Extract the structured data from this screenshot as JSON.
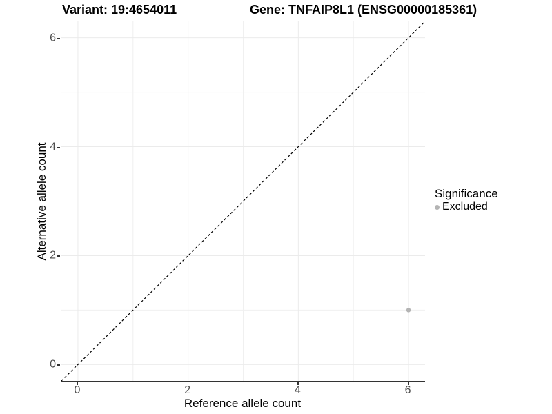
{
  "titles": {
    "variant": "Variant: 19:4654011",
    "gene": "Gene: TNFAIP8L1 (ENSG00000185361)"
  },
  "axes": {
    "x": {
      "label": "Reference allele count",
      "tick_labels": [
        "0",
        "2",
        "4",
        "6"
      ]
    },
    "y": {
      "label": "Alternative allele count",
      "tick_labels": [
        "0",
        "2",
        "4",
        "6"
      ]
    }
  },
  "legend": {
    "title": "Significance",
    "items": [
      {
        "label": "Excluded",
        "color": "#b4b4b4"
      }
    ]
  },
  "colors": {
    "background": "#ffffff",
    "grid_major": "#ebebeb",
    "grid_minor": "#f0f0f0",
    "axis_line": "#333333",
    "tick_text": "#4d4d4d",
    "point_excluded": "#b4b4b4",
    "reference_line": "#000000"
  },
  "chart_data": {
    "type": "scatter",
    "title": "Variant: 19:4654011 | Gene: TNFAIP8L1 (ENSG00000185361)",
    "xlabel": "Reference allele count",
    "ylabel": "Alternative allele count",
    "xlim": [
      -0.3,
      6.3
    ],
    "ylim": [
      -0.3,
      6.3
    ],
    "x_ticks": [
      0,
      2,
      4,
      6
    ],
    "y_ticks": [
      0,
      2,
      4,
      6
    ],
    "minor_gridlines": [
      1,
      3,
      5
    ],
    "grid": "on",
    "legend_position": "right",
    "series": [
      {
        "name": "Excluded",
        "color": "#b4b4b4",
        "points": [
          {
            "x": 6,
            "y": 1
          }
        ]
      }
    ],
    "reference_line": {
      "equation": "y = x",
      "style": "dashed",
      "color": "#000000"
    }
  }
}
